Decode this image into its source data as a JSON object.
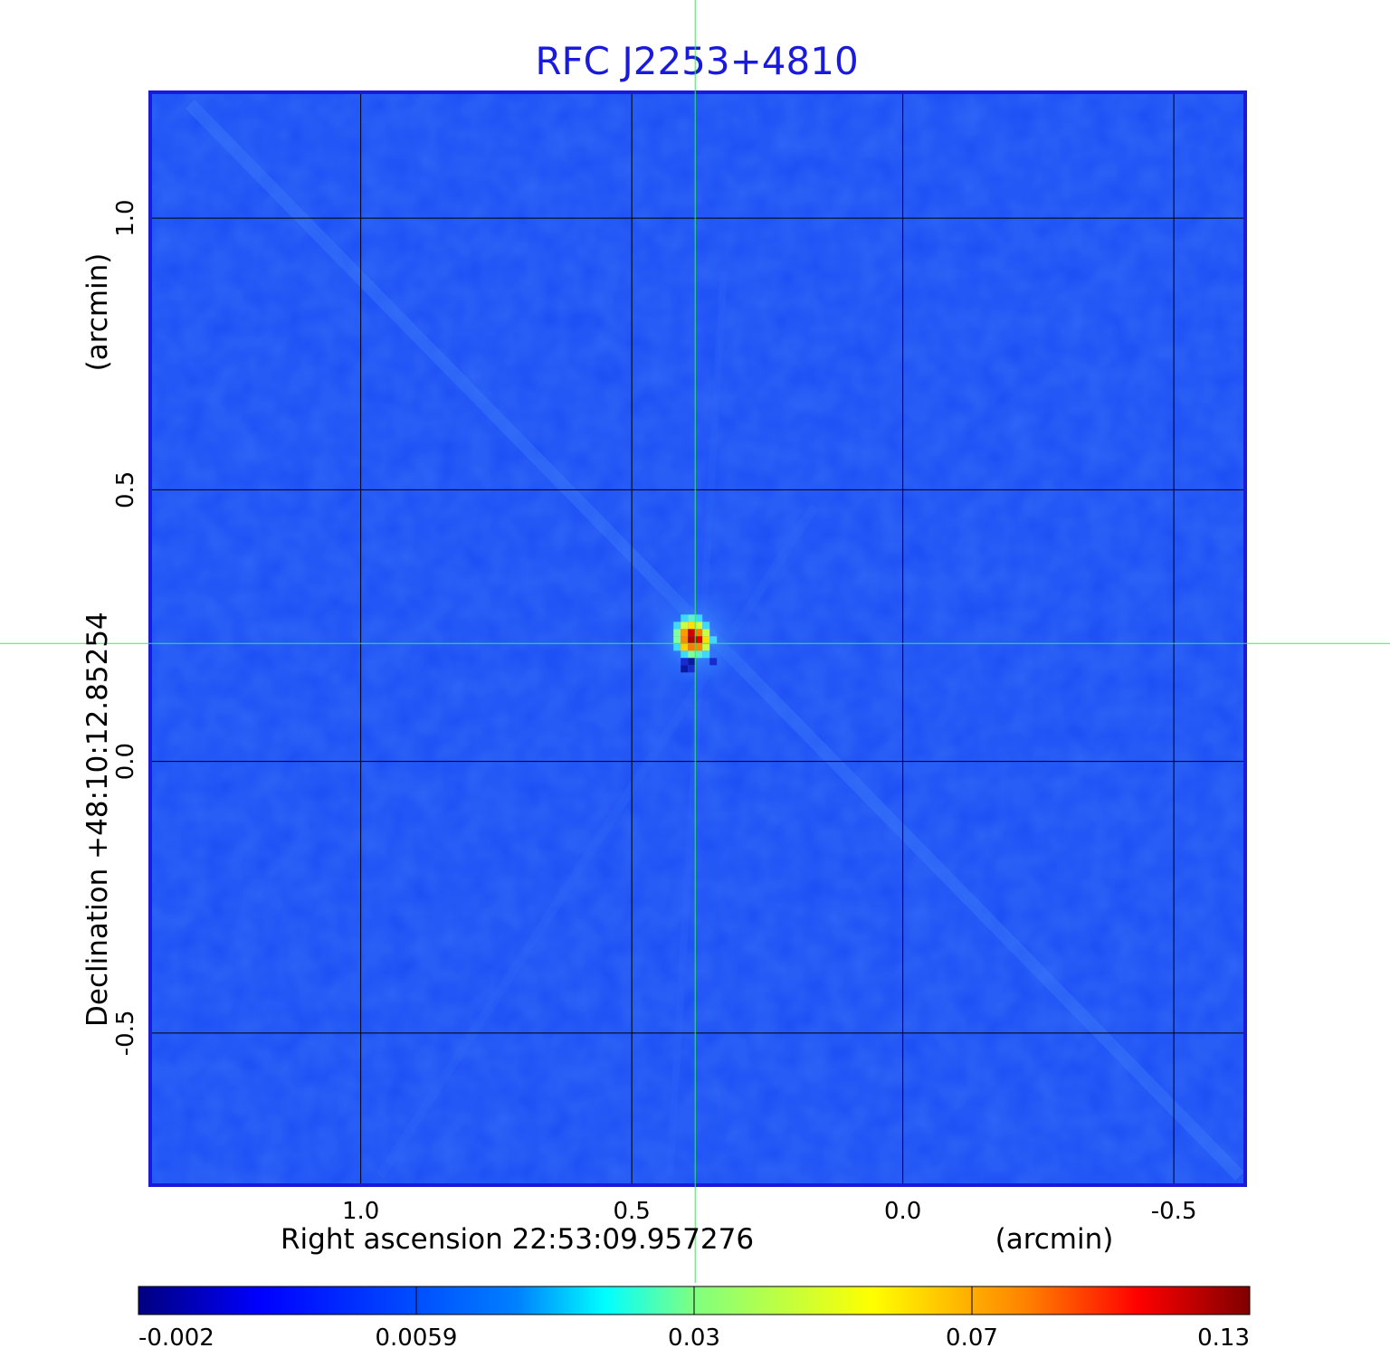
{
  "chart_data": {
    "type": "heatmap",
    "title": "RFC J2253+4810",
    "xlabel": "Right ascension  22:53:09.957276",
    "xunit": "(arcmin)",
    "ylabel": "Declination  +48:10:12.85254",
    "yunit": "(arcmin)",
    "xlim": [
      1.385,
      -0.63
    ],
    "ylim": [
      -0.78,
      1.23
    ],
    "x_ticks": [
      {
        "value": 1.0,
        "label": "1.0"
      },
      {
        "value": 0.5,
        "label": "0.5"
      },
      {
        "value": 0.0,
        "label": "0.0"
      },
      {
        "value": -0.5,
        "label": "-0.5"
      }
    ],
    "y_ticks": [
      {
        "value": 1.0,
        "label": "1.0"
      },
      {
        "value": 0.5,
        "label": "0.5"
      },
      {
        "value": 0.0,
        "label": "0.0"
      },
      {
        "value": -0.5,
        "label": "-0.5"
      }
    ],
    "grid": true,
    "crosshair": {
      "x": 0.383,
      "y": 0.217
    },
    "peak": {
      "x": 0.383,
      "y": 0.217,
      "value": 0.13
    },
    "colorbar": {
      "ticks": [
        "-0.002",
        "0.0059",
        "0.03",
        "0.07",
        "0.13"
      ],
      "range": [
        -0.002,
        0.13
      ],
      "colormap": "jet"
    },
    "colors": {
      "frame": "#1a1adc",
      "title": "#1a1adc",
      "grid": "#000000",
      "crosshair": "#33ee55",
      "background_map": "#1a4df5"
    }
  }
}
